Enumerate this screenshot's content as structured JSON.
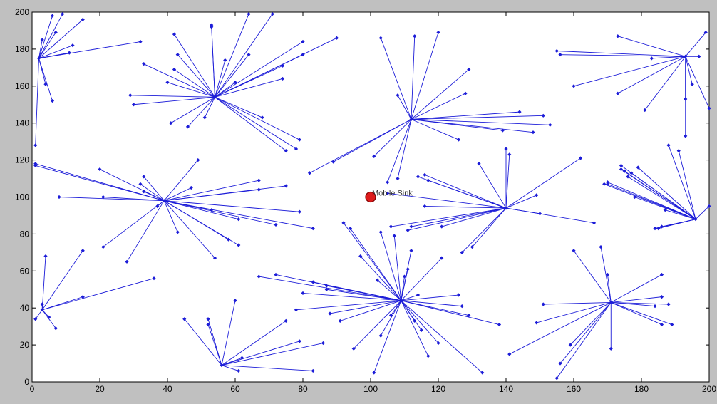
{
  "chart_data": {
    "type": "scatter",
    "title": "",
    "xlabel": "",
    "ylabel": "",
    "xlim": [
      0,
      200
    ],
    "ylim": [
      0,
      200
    ],
    "x_ticks": [
      "0",
      "20",
      "40",
      "60",
      "80",
      "100",
      "120",
      "140",
      "160",
      "180",
      "200"
    ],
    "y_ticks": [
      "0",
      "20",
      "40",
      "60",
      "80",
      "100",
      "120",
      "140",
      "160",
      "180",
      "200"
    ],
    "grid": false,
    "colors": {
      "links": "#1c1cd8",
      "nodes": "#1c1cd8",
      "sink_fill": "#dd1b1b",
      "sink_edge": "#7a0000",
      "plot_bg": "#ffffff",
      "figure_bg": "#c0c0c0"
    },
    "sink": {
      "x": 100,
      "y": 100,
      "label": "Mobile Sink"
    },
    "clusters": [
      {
        "head": [
          2,
          175
        ],
        "members": [
          [
            1,
            128
          ],
          [
            3,
            185
          ],
          [
            4,
            161
          ],
          [
            6,
            152
          ],
          [
            6,
            198
          ],
          [
            7,
            189
          ],
          [
            9,
            199
          ],
          [
            11,
            178
          ],
          [
            12,
            182
          ],
          [
            15,
            196
          ],
          [
            32,
            184
          ]
        ]
      },
      {
        "head": [
          54,
          154
        ],
        "members": [
          [
            29,
            155
          ],
          [
            30,
            150
          ],
          [
            33,
            172
          ],
          [
            40,
            162
          ],
          [
            41,
            140
          ],
          [
            42,
            169
          ],
          [
            42,
            188
          ],
          [
            43,
            177
          ],
          [
            46,
            138
          ],
          [
            51,
            143
          ],
          [
            53,
            192
          ],
          [
            53,
            193
          ],
          [
            57,
            174
          ],
          [
            60,
            162
          ],
          [
            64,
            177
          ],
          [
            64,
            199
          ],
          [
            68,
            143
          ],
          [
            71,
            199
          ],
          [
            74,
            164
          ],
          [
            74,
            171
          ],
          [
            75,
            125
          ],
          [
            78,
            126
          ],
          [
            79,
            131
          ],
          [
            80,
            177
          ],
          [
            80,
            184
          ],
          [
            90,
            186
          ]
        ]
      },
      {
        "head": [
          112,
          142
        ],
        "members": [
          [
            82,
            113
          ],
          [
            89,
            119
          ],
          [
            101,
            122
          ],
          [
            103,
            186
          ],
          [
            105,
            108
          ],
          [
            108,
            110
          ],
          [
            108,
            155
          ],
          [
            113,
            187
          ],
          [
            120,
            189
          ],
          [
            126,
            131
          ],
          [
            128,
            156
          ],
          [
            129,
            169
          ],
          [
            139,
            136
          ],
          [
            144,
            146
          ],
          [
            148,
            135
          ],
          [
            151,
            144
          ],
          [
            153,
            139
          ]
        ]
      },
      {
        "head": [
          193,
          176
        ],
        "members": [
          [
            155,
            179
          ],
          [
            156,
            177
          ],
          [
            160,
            160
          ],
          [
            173,
            156
          ],
          [
            173,
            187
          ],
          [
            181,
            147
          ],
          [
            183,
            175
          ],
          [
            193,
            133
          ],
          [
            193,
            153
          ],
          [
            195,
            161
          ],
          [
            197,
            176
          ],
          [
            199,
            189
          ],
          [
            200,
            148
          ]
        ]
      },
      {
        "head": [
          39,
          98
        ],
        "members": [
          [
            1,
            117
          ],
          [
            1,
            118
          ],
          [
            8,
            100
          ],
          [
            20,
            115
          ],
          [
            21,
            100
          ],
          [
            21,
            73
          ],
          [
            28,
            65
          ],
          [
            32,
            107
          ],
          [
            33,
            111
          ],
          [
            33,
            103
          ],
          [
            37,
            95
          ],
          [
            43,
            81
          ],
          [
            47,
            105
          ],
          [
            49,
            120
          ],
          [
            53,
            93
          ],
          [
            54,
            67
          ],
          [
            58,
            77
          ],
          [
            61,
            74
          ],
          [
            61,
            88
          ],
          [
            67,
            104
          ],
          [
            67,
            109
          ],
          [
            72,
            85
          ],
          [
            75,
            106
          ],
          [
            79,
            92
          ],
          [
            83,
            83
          ]
        ]
      },
      {
        "head": [
          140,
          94
        ],
        "members": [
          [
            105,
            102
          ],
          [
            106,
            84
          ],
          [
            111,
            82
          ],
          [
            112,
            84
          ],
          [
            114,
            111
          ],
          [
            116,
            95
          ],
          [
            116,
            112
          ],
          [
            117,
            109
          ],
          [
            121,
            84
          ],
          [
            127,
            70
          ],
          [
            130,
            73
          ],
          [
            132,
            118
          ],
          [
            140,
            126
          ],
          [
            141,
            123
          ],
          [
            149,
            101
          ],
          [
            150,
            91
          ],
          [
            162,
            121
          ],
          [
            166,
            86
          ]
        ]
      },
      {
        "head": [
          196,
          88
        ],
        "members": [
          [
            169,
            107
          ],
          [
            170,
            108
          ],
          [
            170,
            107
          ],
          [
            174,
            117
          ],
          [
            174,
            115
          ],
          [
            175,
            114
          ],
          [
            176,
            111
          ],
          [
            177,
            113
          ],
          [
            178,
            100
          ],
          [
            179,
            116
          ],
          [
            184,
            83
          ],
          [
            185,
            83
          ],
          [
            186,
            84
          ],
          [
            187,
            93
          ],
          [
            188,
            128
          ],
          [
            191,
            125
          ],
          [
            200,
            95
          ]
        ]
      },
      {
        "head": [
          3,
          39
        ],
        "members": [
          [
            1,
            34
          ],
          [
            3,
            42
          ],
          [
            4,
            68
          ],
          [
            5,
            35
          ],
          [
            7,
            29
          ],
          [
            15,
            46
          ],
          [
            15,
            71
          ],
          [
            36,
            56
          ]
        ]
      },
      {
        "head": [
          56,
          9
        ],
        "members": [
          [
            45,
            34
          ],
          [
            52,
            34
          ],
          [
            52,
            31
          ],
          [
            60,
            44
          ],
          [
            61,
            6
          ],
          [
            62,
            13
          ],
          [
            75,
            33
          ],
          [
            79,
            22
          ],
          [
            83,
            6
          ],
          [
            86,
            21
          ]
        ]
      },
      {
        "head": [
          109,
          44
        ],
        "members": [
          [
            67,
            57
          ],
          [
            72,
            58
          ],
          [
            78,
            39
          ],
          [
            80,
            48
          ],
          [
            83,
            54
          ],
          [
            87,
            52
          ],
          [
            87,
            50
          ],
          [
            88,
            37
          ],
          [
            91,
            33
          ],
          [
            92,
            86
          ],
          [
            94,
            83
          ],
          [
            95,
            18
          ],
          [
            97,
            68
          ],
          [
            101,
            5
          ],
          [
            102,
            55
          ],
          [
            103,
            25
          ],
          [
            103,
            81
          ],
          [
            106,
            36
          ],
          [
            107,
            79
          ],
          [
            110,
            57
          ],
          [
            111,
            61
          ],
          [
            112,
            71
          ],
          [
            113,
            33
          ],
          [
            114,
            47
          ],
          [
            115,
            28
          ],
          [
            117,
            14
          ],
          [
            120,
            21
          ],
          [
            121,
            67
          ],
          [
            126,
            47
          ],
          [
            127,
            41
          ],
          [
            129,
            36
          ],
          [
            133,
            5
          ],
          [
            138,
            31
          ]
        ]
      },
      {
        "head": [
          171,
          43
        ],
        "members": [
          [
            141,
            15
          ],
          [
            149,
            32
          ],
          [
            151,
            42
          ],
          [
            155,
            2
          ],
          [
            156,
            10
          ],
          [
            159,
            20
          ],
          [
            160,
            71
          ],
          [
            168,
            73
          ],
          [
            170,
            58
          ],
          [
            171,
            18
          ],
          [
            184,
            41
          ],
          [
            186,
            58
          ],
          [
            186,
            46
          ],
          [
            186,
            31
          ],
          [
            188,
            42
          ],
          [
            189,
            31
          ]
        ]
      }
    ]
  }
}
